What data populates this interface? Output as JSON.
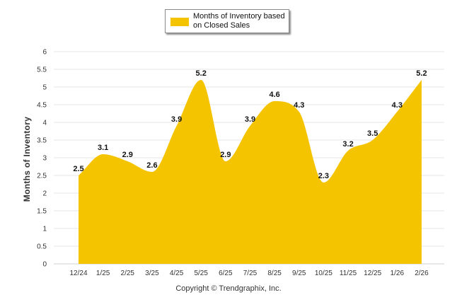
{
  "chart_data": {
    "type": "area",
    "title": "",
    "xlabel": "",
    "ylabel": "Months of Inventory",
    "ylim": [
      0,
      6
    ],
    "ytick_labels": [
      "0",
      "0.5",
      "1",
      "1.5",
      "2",
      "2.5",
      "3",
      "3.5",
      "4",
      "4.5",
      "5",
      "5.5",
      "6"
    ],
    "categories": [
      "12/24",
      "1/25",
      "2/25",
      "3/25",
      "4/25",
      "5/25",
      "6/25",
      "7/25",
      "8/25",
      "9/25",
      "10/25",
      "11/25",
      "12/25",
      "1/26",
      "2/26"
    ],
    "series": [
      {
        "name": "Months of Inventory based on Closed Sales",
        "values": [
          2.5,
          3.1,
          2.9,
          2.6,
          3.9,
          5.2,
          2.9,
          3.9,
          4.6,
          4.3,
          2.3,
          3.2,
          3.5,
          4.3,
          5.2
        ],
        "data_labels": [
          "2.5",
          "3.1",
          "2.9",
          "2.6",
          "3.9",
          "5.2",
          "2.9",
          "3.9",
          "4.6",
          "4.3",
          "2.3",
          "3.2",
          "3.5",
          "4.3",
          "5.2"
        ],
        "color": "#f5c400"
      }
    ],
    "legend": {
      "label": "Months of Inventory based on Closed Sales",
      "position": "top-center"
    },
    "grid": true
  },
  "footer": {
    "copyright": "Copyright © Trendgraphix, Inc."
  },
  "colors": {
    "fill": "#f5c400",
    "grid": "#e6e6e6",
    "axis_text": "#333333"
  }
}
